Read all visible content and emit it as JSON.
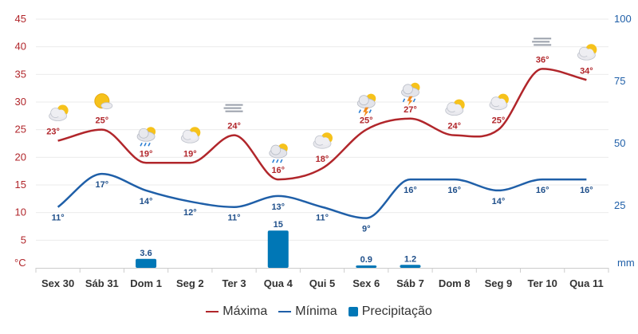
{
  "chart_data": {
    "type": "line",
    "categories": [
      "Sex 30",
      "Sáb 31",
      "Dom 1",
      "Seg 2",
      "Ter 3",
      "Qua 4",
      "Qui 5",
      "Sex 6",
      "Sáb 7",
      "Dom 8",
      "Seg 9",
      "Ter 10",
      "Qua 11"
    ],
    "series": [
      {
        "name": "Máxima",
        "type": "line",
        "axis": "left",
        "color": "#b1262b",
        "values": [
          23,
          25,
          19,
          19,
          24,
          16,
          18,
          25,
          27,
          24,
          25,
          36,
          34
        ]
      },
      {
        "name": "Mínima",
        "type": "line",
        "axis": "left",
        "color": "#1f5fa8",
        "values": [
          11,
          17,
          14,
          12,
          11,
          13,
          11,
          9,
          16,
          16,
          14,
          16,
          16
        ]
      },
      {
        "name": "Precipitação",
        "type": "bar",
        "axis": "right",
        "color": "#0077b6",
        "values": [
          null,
          null,
          3.6,
          null,
          null,
          15,
          null,
          0.9,
          1.2,
          null,
          null,
          null,
          null
        ]
      }
    ],
    "y_left": {
      "unit": "°C",
      "ticks": [
        5,
        10,
        15,
        20,
        25,
        30,
        35,
        40,
        45
      ],
      "range": [
        0,
        45
      ]
    },
    "y_right": {
      "unit": "mm",
      "ticks": [
        25,
        50,
        75,
        100
      ],
      "range": [
        0,
        100
      ]
    },
    "weather_icons": [
      "partly-cloudy-icon",
      "sunny-cloudy-icon",
      "rain-cloud-icon",
      "partly-cloudy-icon",
      "fog-icon",
      "rain-cloud-icon",
      "partly-cloudy-icon",
      "thunderstorm-icon",
      "thunderstorm-icon",
      "partly-cloudy-icon",
      "partly-cloudy-icon",
      "fog-icon",
      "partly-cloudy-icon"
    ],
    "label_suffix": "°",
    "legend_position": "bottom-center",
    "grid": true
  }
}
